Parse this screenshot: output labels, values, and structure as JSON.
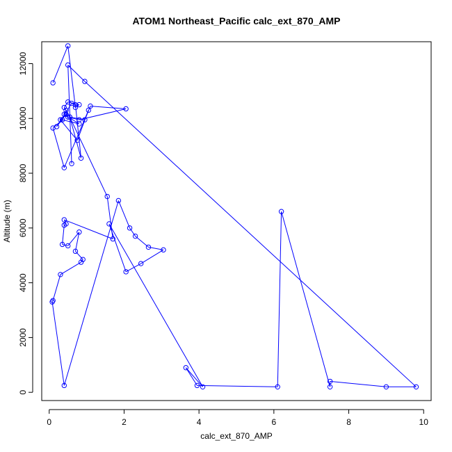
{
  "chart_data": {
    "type": "line",
    "title": "ATOM1 Northeast_Pacific calc_ext_870_AMP",
    "xlabel": "calc_ext_870_AMP",
    "ylabel": "Altitude (m)",
    "xlim": [
      -0.2,
      10.2
    ],
    "ylim": [
      -300,
      12800
    ],
    "xticks": [
      0,
      2,
      4,
      6,
      8,
      10
    ],
    "xtick_labels": [
      "0",
      "2",
      "4",
      "6",
      "8",
      "10"
    ],
    "yticks": [
      0,
      2000,
      4000,
      6000,
      8000,
      10000,
      12000
    ],
    "ytick_labels": [
      "0",
      "2000",
      "4000",
      "6000",
      "8000",
      "10000",
      "12000"
    ],
    "grid": false,
    "series_color": "#0000ff",
    "markers": "open-circle",
    "x": [
      0.1,
      0.5,
      0.7,
      0.8,
      0.5,
      0.4,
      0.55,
      0.95,
      1.1,
      2.05,
      0.8,
      0.5,
      0.45,
      0.4,
      0.8,
      0.35,
      0.1,
      0.4,
      1.05,
      0.75,
      0.3,
      0.45,
      0.2,
      0.6,
      0.7,
      0.85,
      0.55,
      1.55,
      1.7,
      0.4,
      0.45,
      0.4,
      0.35,
      0.5,
      0.8,
      0.7,
      0.9,
      0.85,
      0.3,
      0.1,
      0.08,
      0.4,
      1.85,
      2.15,
      2.3,
      2.65,
      3.05,
      2.45,
      2.05,
      1.6,
      4.1,
      3.65,
      3.95,
      6.1,
      6.2,
      7.5,
      7.5,
      9.0,
      9.8,
      0.95,
      0.5,
      0.6
    ],
    "y": [
      11300,
      12650,
      10400,
      10500,
      10600,
      10400,
      10050,
      9950,
      10450,
      10350,
      9950,
      10050,
      10300,
      10150,
      9800,
      9950,
      9650,
      8200,
      10300,
      9200,
      9950,
      10150,
      9700,
      10550,
      10500,
      8550,
      10050,
      7150,
      5600,
      6300,
      6150,
      6100,
      5400,
      5350,
      5850,
      5150,
      4850,
      4750,
      4300,
      3350,
      3300,
      250,
      7000,
      6000,
      5700,
      5300,
      5200,
      4700,
      4400,
      6150,
      200,
      900,
      250,
      200,
      6600,
      200,
      400,
      200,
      200,
      11350,
      11950,
      8350
    ]
  }
}
